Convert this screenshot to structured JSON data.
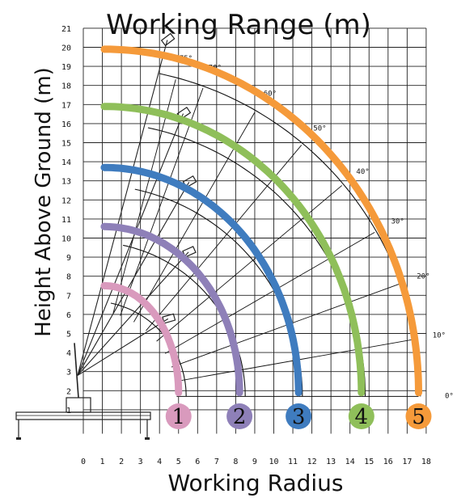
{
  "chart_data": {
    "type": "line",
    "title": "Working Range (m)",
    "xlabel": "Working Radius",
    "ylabel": "Height Above Ground (m)",
    "xlim": [
      0,
      18
    ],
    "ylim": [
      0,
      21
    ],
    "x_ticks": [
      "0",
      "1",
      "2",
      "3",
      "4",
      "5",
      "6",
      "7",
      "8",
      "9",
      "10",
      "11",
      "12",
      "13",
      "14",
      "15",
      "16",
      "17",
      "18"
    ],
    "y_ticks": [
      "1",
      "2",
      "3",
      "4",
      "5",
      "6",
      "7",
      "8",
      "9",
      "10",
      "11",
      "12",
      "13",
      "14",
      "15",
      "16",
      "17",
      "18",
      "19",
      "20",
      "21"
    ],
    "grid": true,
    "pivot": [
      0.4,
      1.7
    ],
    "boom_angles": [
      {
        "label": "0°",
        "deg": 0
      },
      {
        "label": "10°",
        "deg": 10
      },
      {
        "label": "20°",
        "deg": 20
      },
      {
        "label": "30°",
        "deg": 30
      },
      {
        "label": "40°",
        "deg": 40
      },
      {
        "label": "50°",
        "deg": 50
      },
      {
        "label": "60°",
        "deg": 60
      },
      {
        "label": "70°",
        "deg": 70
      },
      {
        "label": "75°",
        "deg": 75
      }
    ],
    "series": [
      {
        "label": "1",
        "color": "#d99abd",
        "max_radius": 5.0,
        "max_height": 7.5
      },
      {
        "label": "2",
        "color": "#8e80b8",
        "max_radius": 8.2,
        "max_height": 10.6
      },
      {
        "label": "3",
        "color": "#3f7cbf",
        "max_radius": 11.3,
        "max_height": 13.7
      },
      {
        "label": "4",
        "color": "#8fbf5a",
        "max_radius": 14.6,
        "max_height": 16.9
      },
      {
        "label": "5",
        "color": "#f59a3a",
        "max_radius": 17.6,
        "max_height": 19.9
      }
    ]
  }
}
